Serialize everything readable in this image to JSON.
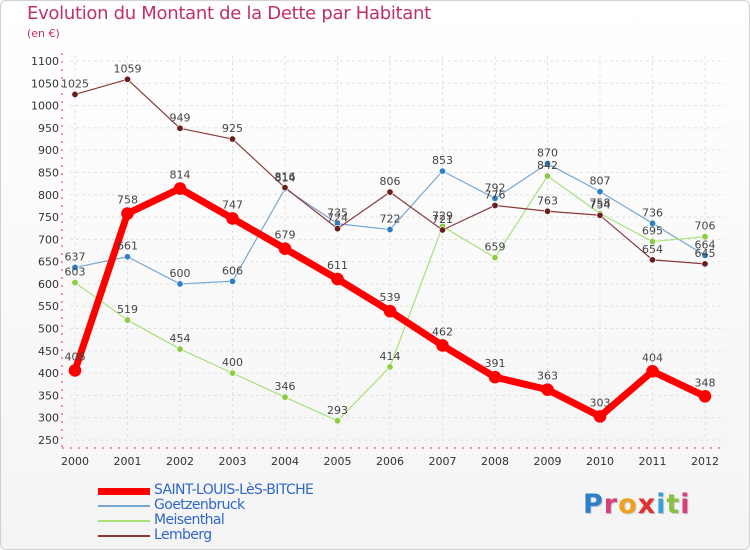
{
  "title": "Evolution du Montant de la Dette par Habitant",
  "subtitle": "(en €)",
  "logo": {
    "letters": [
      {
        "ch": "P",
        "color": "#2f7fc8"
      },
      {
        "ch": "r",
        "color": "#d9407a"
      },
      {
        "ch": "o",
        "color": "#f0a020"
      },
      {
        "ch": "x",
        "color": "#e03030"
      },
      {
        "ch": "i",
        "color": "#3aa0d8"
      },
      {
        "ch": "t",
        "color": "#8cc040"
      },
      {
        "ch": "i",
        "color": "#d9407a"
      }
    ]
  },
  "chart_data": {
    "type": "line",
    "title": "Evolution du Montant de la Dette par Habitant",
    "subtitle": "(en €)",
    "xlabel": "",
    "ylabel": "",
    "x": [
      "2000",
      "2001",
      "2002",
      "2003",
      "2004",
      "2005",
      "2006",
      "2007",
      "2008",
      "2009",
      "2010",
      "2011",
      "2012"
    ],
    "ylim": [
      250,
      1100
    ],
    "yticks": [
      250,
      300,
      350,
      400,
      450,
      500,
      550,
      600,
      650,
      700,
      750,
      800,
      850,
      900,
      950,
      1000,
      1050,
      1100
    ],
    "grid": true,
    "legend_position": "bottom-left",
    "series": [
      {
        "name": "Goetzenbruck",
        "color": "#7aa7cf",
        "marker": "#2f7fc8",
        "width": 1.2,
        "values": [
          637,
          661,
          600,
          606,
          814,
          735,
          722,
          853,
          792,
          870,
          807,
          736,
          664
        ]
      },
      {
        "name": "Meisenthal",
        "color": "#a8e07a",
        "marker": "#8ccc40",
        "width": 1.2,
        "values": [
          603,
          519,
          454,
          400,
          346,
          293,
          414,
          729,
          659,
          842,
          758,
          695,
          706
        ]
      },
      {
        "name": "Lemberg",
        "color": "#8a3a3a",
        "marker": "#6a1f1f",
        "width": 1.2,
        "values": [
          1025,
          1059,
          949,
          925,
          816,
          724,
          806,
          721,
          776,
          763,
          754,
          654,
          645
        ]
      },
      {
        "name": "SAINT-LOUIS-LèS-BITCHE",
        "color": "#ff0000",
        "marker": "#ff0000",
        "width": 7,
        "values": [
          406,
          758,
          814,
          747,
          679,
          611,
          539,
          462,
          391,
          363,
          303,
          404,
          348
        ]
      }
    ],
    "legend_order": [
      "SAINT-LOUIS-LèS-BITCHE",
      "Goetzenbruck",
      "Meisenthal",
      "Lemberg"
    ]
  }
}
